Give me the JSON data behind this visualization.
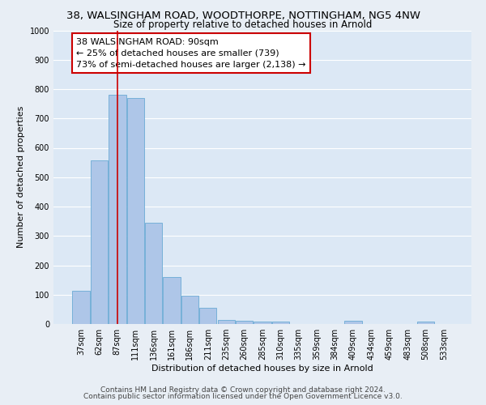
{
  "title_main": "38, WALSINGHAM ROAD, WOODTHORPE, NOTTINGHAM, NG5 4NW",
  "title_sub": "Size of property relative to detached houses in Arnold",
  "xlabel": "Distribution of detached houses by size in Arnold",
  "ylabel": "Number of detached properties",
  "bar_labels": [
    "37sqm",
    "62sqm",
    "87sqm",
    "111sqm",
    "136sqm",
    "161sqm",
    "186sqm",
    "211sqm",
    "235sqm",
    "260sqm",
    "285sqm",
    "310sqm",
    "335sqm",
    "359sqm",
    "384sqm",
    "409sqm",
    "434sqm",
    "459sqm",
    "483sqm",
    "508sqm",
    "533sqm"
  ],
  "bar_values": [
    112,
    557,
    780,
    770,
    345,
    160,
    97,
    56,
    15,
    12,
    8,
    7,
    0,
    0,
    0,
    10,
    0,
    0,
    0,
    8,
    0
  ],
  "bar_color": "#aec6e8",
  "bar_edge_color": "#6aaad4",
  "vline_x": 2,
  "vline_color": "#cc0000",
  "annotation_line1": "38 WALSINGHAM ROAD: 90sqm",
  "annotation_line2": "← 25% of detached houses are smaller (739)",
  "annotation_line3": "73% of semi-detached houses are larger (2,138) →",
  "ylim": [
    0,
    1000
  ],
  "yticks": [
    0,
    100,
    200,
    300,
    400,
    500,
    600,
    700,
    800,
    900,
    1000
  ],
  "fig_facecolor": "#e8eef5",
  "axes_facecolor": "#dce8f5",
  "grid_color": "#ffffff",
  "footer_text1": "Contains HM Land Registry data © Crown copyright and database right 2024.",
  "footer_text2": "Contains public sector information licensed under the Open Government Licence v3.0.",
  "title_fontsize": 9.5,
  "subtitle_fontsize": 8.5,
  "axis_label_fontsize": 8,
  "tick_fontsize": 7,
  "annotation_fontsize": 8,
  "footer_fontsize": 6.5
}
